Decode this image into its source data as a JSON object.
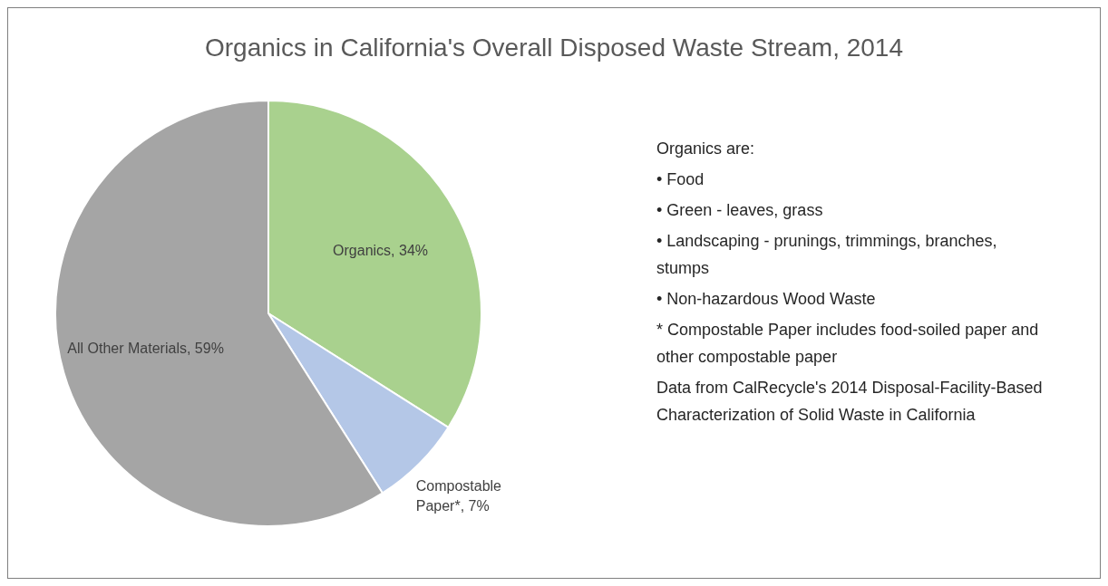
{
  "chart_data": {
    "type": "pie",
    "title": "Organics in California's Overall Disposed Waste Stream, 2014",
    "categories": [
      "Organics",
      "Compostable Paper*",
      "All Other Materials"
    ],
    "values": [
      34,
      7,
      59
    ],
    "colors": [
      "#a9d18e",
      "#b4c7e7",
      "#a5a5a5"
    ],
    "value_labels": [
      "34%",
      "7%",
      "59%"
    ],
    "annotations": [
      "Organics are:",
      "• Food",
      "• Green - leaves, grass",
      "• Landscaping - prunings, trimmings, branches, stumps",
      "• Non-hazardous Wood Waste",
      "* Compostable Paper includes food-soiled paper and other compostable paper",
      "Data from CalRecycle's 2014 Disposal-Facility-Based Characterization of Solid Waste in California"
    ]
  }
}
